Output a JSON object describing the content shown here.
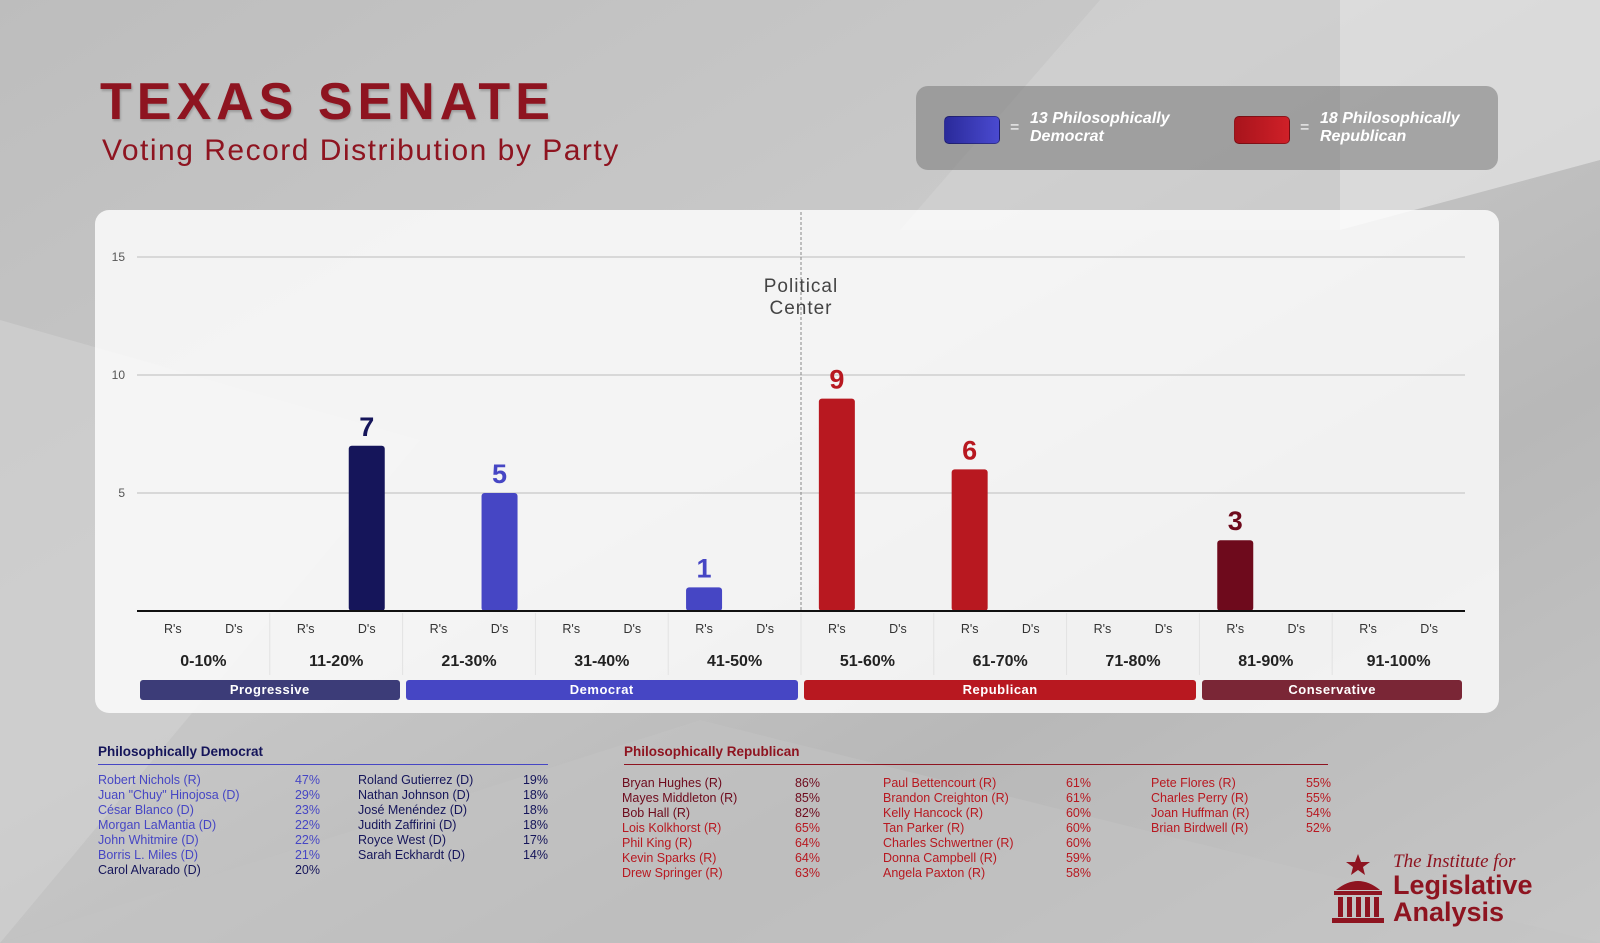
{
  "title": "TEXAS SENATE",
  "subtitle": "Voting Record Distribution by Party",
  "colors": {
    "dem_dark": "#15155a",
    "dem": "#4646c4",
    "rep": "#b81820",
    "rep_dark": "#6e0a1c",
    "title_red": "#8e1420"
  },
  "legend": [
    {
      "equals": "=",
      "label_line1": "13 Philosophically",
      "label_line2": "Democrat",
      "color": "#2a2a9a"
    },
    {
      "equals": "=",
      "label_line1": "18 Philosophically",
      "label_line2": "Republican",
      "color": "#a8141c"
    }
  ],
  "chart_data": {
    "type": "bar",
    "xlabel": "",
    "ylabel": "",
    "ylim": [
      0,
      15
    ],
    "yticks": [
      5,
      10,
      15
    ],
    "grid": true,
    "categories": [
      "0-10%",
      "11-20%",
      "21-30%",
      "31-40%",
      "41-50%",
      "51-60%",
      "61-70%",
      "71-80%",
      "81-90%",
      "91-100%"
    ],
    "sub_labels": [
      "R's",
      "D's"
    ],
    "series": [
      {
        "name": "R's",
        "values": [
          0,
          0,
          0,
          0,
          1,
          9,
          6,
          0,
          3,
          0
        ],
        "bar_colors": [
          "",
          "",
          "",
          "",
          "#4646c4",
          "#b81820",
          "#b81820",
          "",
          "#6e0a1c",
          ""
        ]
      },
      {
        "name": "D's",
        "values": [
          0,
          7,
          5,
          0,
          0,
          0,
          0,
          0,
          0,
          0
        ],
        "bar_colors": [
          "",
          "#15155a",
          "#4646c4",
          "",
          "",
          "",
          "",
          "",
          "",
          ""
        ]
      }
    ],
    "data_labels": [
      {
        "category": "11-20%",
        "text": "7",
        "color": "#15155a"
      },
      {
        "category": "21-30%",
        "text": "5",
        "color": "#4646c4"
      },
      {
        "category": "41-50%",
        "text": "1",
        "color": "#4646c4"
      },
      {
        "category": "51-60%",
        "text": "9",
        "color": "#b81820"
      },
      {
        "category": "61-70%",
        "text": "6",
        "color": "#b81820"
      },
      {
        "category": "81-90%",
        "text": "3",
        "color": "#6e0a1c"
      }
    ],
    "annotations": [
      "Political",
      "Center"
    ],
    "bands": [
      {
        "label": "Progressive",
        "color": "#3c3c78"
      },
      {
        "label": "Democrat",
        "color": "#4646c4"
      },
      {
        "label": "Republican",
        "color": "#b81820"
      },
      {
        "label": "Conservative",
        "color": "#7a2636"
      }
    ]
  },
  "dem_list": {
    "heading": "Philosophically Democrat",
    "columns": [
      [
        {
          "name": "Robert Nichols (R)",
          "pct": "47%",
          "color": "#4646c4"
        },
        {
          "name": "Juan \"Chuy\" Hinojosa (D)",
          "pct": "29%",
          "color": "#4646c4"
        },
        {
          "name": "César Blanco (D)",
          "pct": "23%",
          "color": "#4646c4"
        },
        {
          "name": "Morgan LaMantia (D)",
          "pct": "22%",
          "color": "#4646c4"
        },
        {
          "name": "John Whitmire (D)",
          "pct": "22%",
          "color": "#4646c4"
        },
        {
          "name": "Borris L. Miles (D)",
          "pct": "21%",
          "color": "#4646c4"
        },
        {
          "name": "Carol Alvarado (D)",
          "pct": "20%",
          "color": "#15155a"
        }
      ],
      [
        {
          "name": "Roland Gutierrez (D)",
          "pct": "19%",
          "color": "#15155a"
        },
        {
          "name": "Nathan Johnson (D)",
          "pct": "18%",
          "color": "#15155a"
        },
        {
          "name": "José Menéndez (D)",
          "pct": "18%",
          "color": "#15155a"
        },
        {
          "name": "Judith Zaffirini (D)",
          "pct": "18%",
          "color": "#15155a"
        },
        {
          "name": "Royce West (D)",
          "pct": "17%",
          "color": "#15155a"
        },
        {
          "name": "Sarah Eckhardt (D)",
          "pct": "14%",
          "color": "#15155a"
        }
      ]
    ]
  },
  "rep_list": {
    "heading": "Philosophically Republican",
    "columns": [
      [
        {
          "name": "Bryan Hughes (R)",
          "pct": "86%",
          "color": "#6e0a1c"
        },
        {
          "name": "Mayes Middleton (R)",
          "pct": "85%",
          "color": "#6e0a1c"
        },
        {
          "name": "Bob Hall (R)",
          "pct": "82%",
          "color": "#6e0a1c"
        },
        {
          "name": "Lois Kolkhorst (R)",
          "pct": "65%",
          "color": "#b81820"
        },
        {
          "name": "Phil King (R)",
          "pct": "64%",
          "color": "#b81820"
        },
        {
          "name": "Kevin Sparks (R)",
          "pct": "64%",
          "color": "#b81820"
        },
        {
          "name": "Drew Springer (R)",
          "pct": "63%",
          "color": "#b81820"
        }
      ],
      [
        {
          "name": "Paul Bettencourt (R)",
          "pct": "61%",
          "color": "#b81820"
        },
        {
          "name": "Brandon Creighton (R)",
          "pct": "61%",
          "color": "#b81820"
        },
        {
          "name": "Kelly Hancock (R)",
          "pct": "60%",
          "color": "#b81820"
        },
        {
          "name": "Tan Parker (R)",
          "pct": "60%",
          "color": "#b81820"
        },
        {
          "name": "Charles Schwertner (R)",
          "pct": "60%",
          "color": "#b81820"
        },
        {
          "name": "Donna Campbell (R)",
          "pct": "59%",
          "color": "#b81820"
        },
        {
          "name": "Angela Paxton (R)",
          "pct": "58%",
          "color": "#b81820"
        }
      ],
      [
        {
          "name": "Pete Flores (R)",
          "pct": "55%",
          "color": "#b81820"
        },
        {
          "name": "Charles Perry (R)",
          "pct": "55%",
          "color": "#b81820"
        },
        {
          "name": "Joan Huffman (R)",
          "pct": "54%",
          "color": "#b81820"
        },
        {
          "name": "Brian Birdwell (R)",
          "pct": "52%",
          "color": "#b81820"
        }
      ]
    ]
  },
  "logo": {
    "line1": "The Institute for",
    "line2": "Legislative",
    "line3": "Analysis",
    "icon": "capitol-star-icon"
  }
}
